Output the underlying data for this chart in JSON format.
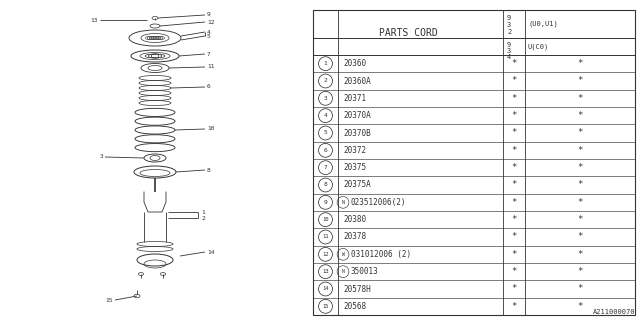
{
  "watermark": "A211000070",
  "bg_color": "#ffffff",
  "parts": [
    {
      "num": "1",
      "code": "20360"
    },
    {
      "num": "2",
      "code": "20360A"
    },
    {
      "num": "3",
      "code": "20371"
    },
    {
      "num": "4",
      "code": "20370A"
    },
    {
      "num": "5",
      "code": "20370B"
    },
    {
      "num": "6",
      "code": "20372"
    },
    {
      "num": "7",
      "code": "20375"
    },
    {
      "num": "8",
      "code": "20375A"
    },
    {
      "num": "9",
      "code": "N023512006(2)"
    },
    {
      "num": "10",
      "code": "20380"
    },
    {
      "num": "11",
      "code": "20378"
    },
    {
      "num": "12",
      "code": "W031012006 (2)"
    },
    {
      "num": "13",
      "code": "N350013"
    },
    {
      "num": "14",
      "code": "20578H"
    },
    {
      "num": "15",
      "code": "20568"
    }
  ],
  "col_header": "PARTS CORD",
  "star": "*"
}
